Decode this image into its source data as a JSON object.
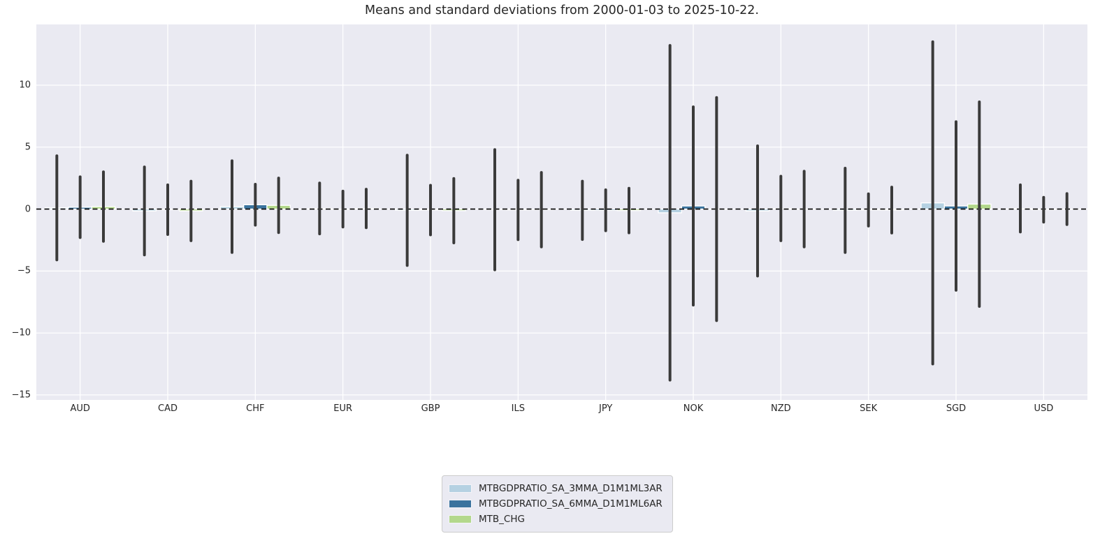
{
  "chart_data": {
    "type": "bar",
    "title": "Means and standard deviations from 2000-01-03 to 2025-10-22.",
    "xlabel": "",
    "ylabel": "",
    "categories": [
      "AUD",
      "CAD",
      "CHF",
      "EUR",
      "GBP",
      "ILS",
      "JPY",
      "NOK",
      "NZD",
      "SEK",
      "SGD",
      "USD"
    ],
    "series": [
      {
        "name": "MTBGDPRATIO_SA_3MMA_D1M1ML3AR",
        "color": "#b5d1e2",
        "means": [
          0.1,
          -0.15,
          0.2,
          0.05,
          -0.1,
          -0.05,
          -0.1,
          -0.3,
          -0.15,
          -0.1,
          0.5,
          0.05
        ],
        "stds": [
          4.2,
          3.55,
          3.7,
          2.05,
          4.45,
          4.85,
          2.35,
          13.5,
          5.25,
          3.4,
          13.0,
          1.9
        ]
      },
      {
        "name": "MTBGDPRATIO_SA_6MMA_D1M1ML6AR",
        "color": "#3a739e",
        "means": [
          0.15,
          -0.05,
          0.35,
          0.0,
          -0.08,
          -0.07,
          -0.1,
          0.25,
          0.05,
          -0.07,
          0.25,
          -0.05
        ],
        "stds": [
          2.45,
          2.0,
          1.65,
          1.45,
          2.0,
          2.4,
          1.65,
          8.0,
          2.6,
          1.3,
          6.8,
          1.0
        ]
      },
      {
        "name": "MTB_CHG",
        "color": "#b3d88c",
        "means": [
          0.2,
          -0.15,
          0.3,
          0.05,
          -0.13,
          -0.05,
          -0.12,
          0.0,
          0.0,
          -0.08,
          0.4,
          0.0
        ],
        "stds": [
          2.8,
          2.4,
          2.2,
          1.55,
          2.6,
          3.0,
          1.8,
          9.0,
          3.05,
          1.85,
          8.25,
          1.25
        ]
      }
    ],
    "yticks": [
      10,
      5,
      0,
      -5,
      -10,
      -15
    ],
    "ylim": [
      -15.4,
      14.9
    ],
    "grid": true,
    "legend_position": "lower center",
    "zero_line": 0,
    "colors": {
      "axes_background": "#eaeaf2",
      "gridline": "#ffffff",
      "errorbar": "#3a3a3a",
      "zero_line": "#000000",
      "text": "#262626"
    }
  }
}
